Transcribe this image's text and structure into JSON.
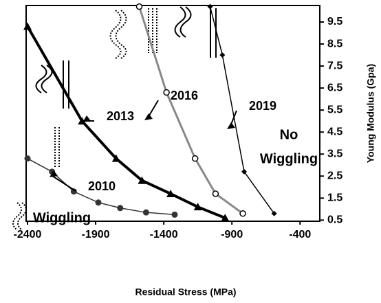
{
  "chart_data": {
    "type": "line",
    "x_label": "Residual Stress (MPa)",
    "y_label": "Young Modulus (Gpa)",
    "xlim": [
      -2400,
      -250
    ],
    "xticks": [
      -2400,
      -1900,
      -1400,
      -900,
      -400
    ],
    "ylim": [
      0.45,
      10.25
    ],
    "yticks": [
      0.5,
      1.5,
      2.5,
      3.5,
      4.5,
      5.5,
      6.5,
      7.5,
      8.5,
      9.5
    ],
    "series": [
      {
        "name": "2013",
        "color": "#000000",
        "marker": "triangle",
        "x": [
          -2400,
          -2000,
          -1750,
          -1560,
          -1350,
          -1150,
          -950
        ],
        "values": [
          9.3,
          5.0,
          3.3,
          2.3,
          1.7,
          1.1,
          0.6
        ]
      },
      {
        "name": "2010",
        "color": "#333333",
        "marker": "circle",
        "x": [
          -2400,
          -2220,
          -2060,
          -1880,
          -1720,
          -1530,
          -1320
        ],
        "values": [
          3.3,
          2.7,
          1.8,
          1.3,
          1.05,
          0.85,
          0.75
        ]
      },
      {
        "name": "2016",
        "color": "#888888",
        "marker": "open-circle",
        "x": [
          -1580,
          -1380,
          -1170,
          -1020,
          -820
        ],
        "values": [
          10.2,
          6.3,
          3.3,
          1.7,
          0.8
        ]
      },
      {
        "name": "2019",
        "color": "#000000",
        "marker": "diamond",
        "x": [
          -1060,
          -970,
          -810,
          -590
        ],
        "values": [
          10.2,
          8.0,
          2.7,
          0.8
        ]
      }
    ],
    "annotations": [
      "No",
      "Wiggling",
      "Wiggling"
    ]
  }
}
